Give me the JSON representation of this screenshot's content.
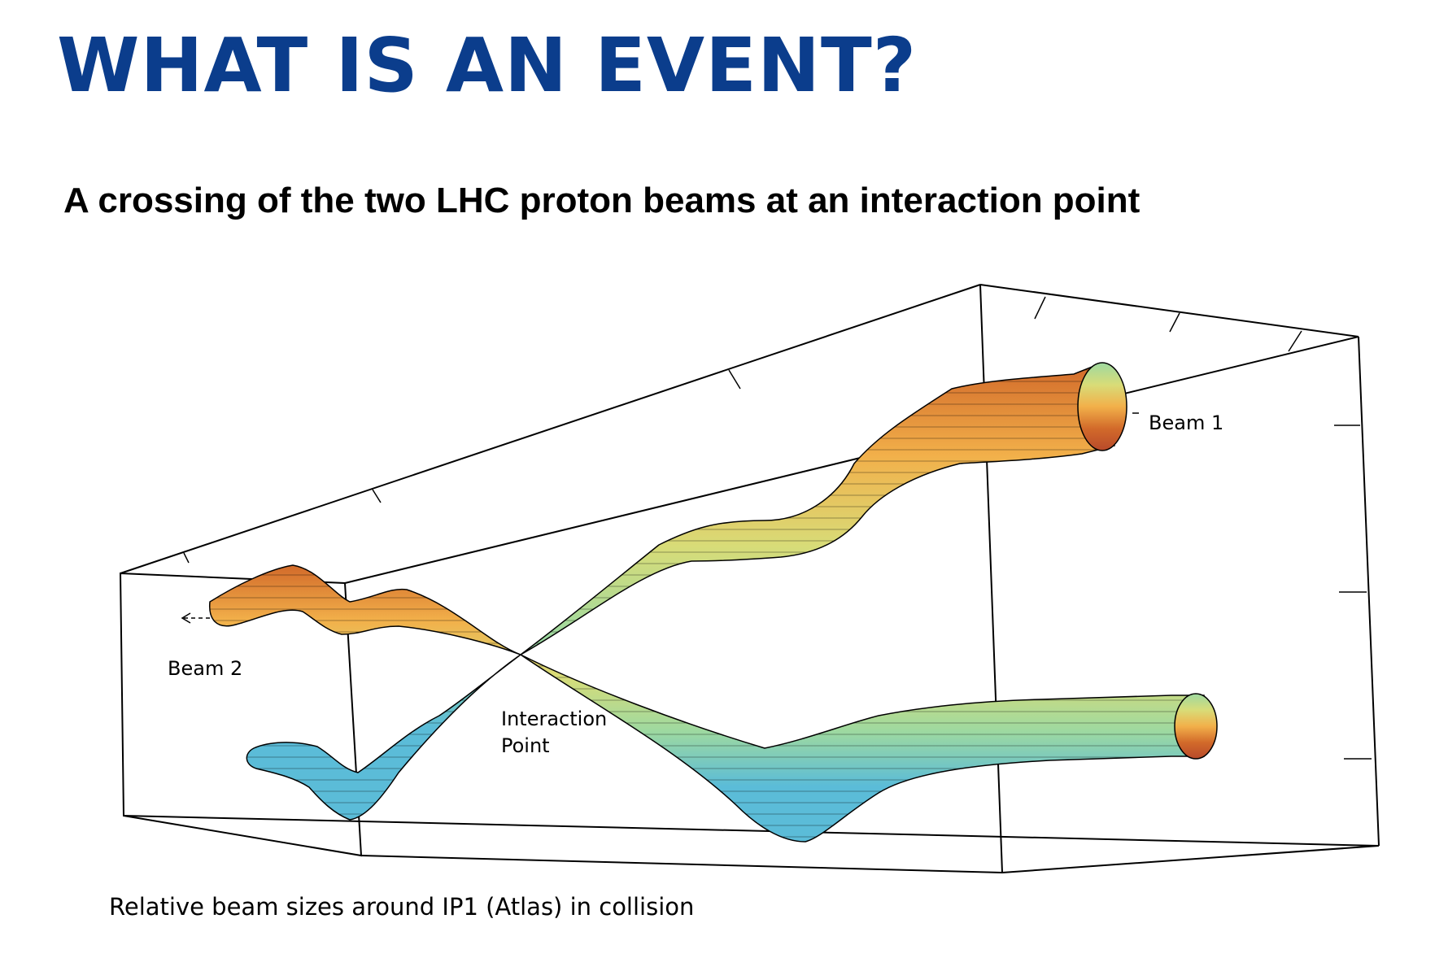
{
  "slide": {
    "title": "WHAT IS AN EVENT?",
    "subtitle": "A crossing of the two LHC proton beams at an interaction point",
    "title_color": "#0b3d8c"
  },
  "figure": {
    "labels": {
      "beam1": "Beam 1",
      "beam2": "Beam 2",
      "ip_line1": "Interaction",
      "ip_line2": "Point"
    },
    "caption": "Relative beam sizes around IP1 (Atlas) in collision",
    "colormap": [
      "#5bbcd8",
      "#9ed9a0",
      "#d8dc78",
      "#f2b04a",
      "#d26a2a",
      "#b84a2a"
    ]
  }
}
